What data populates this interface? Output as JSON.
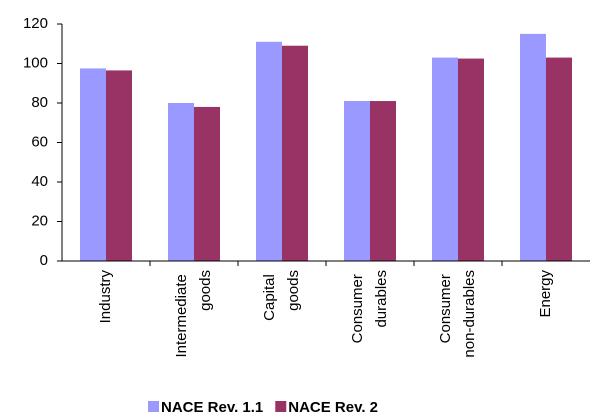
{
  "chart_data": {
    "type": "bar",
    "categories": [
      "Industry",
      "Intermediate goods",
      "Capital goods",
      "Consumer durables",
      "Consumer non-durables",
      "Energy"
    ],
    "series": [
      {
        "name": "NACE Rev. 1.1",
        "color": "#9999ff",
        "values": [
          97.5,
          80,
          111,
          81,
          103,
          115
        ]
      },
      {
        "name": "NACE Rev. 2",
        "color": "#993366",
        "values": [
          96.5,
          78,
          109,
          81,
          102.5,
          103
        ]
      }
    ],
    "ylim": [
      0,
      120
    ],
    "yticks": [
      0,
      20,
      40,
      60,
      80,
      100,
      120
    ],
    "grid": false,
    "legend": "bottom"
  }
}
